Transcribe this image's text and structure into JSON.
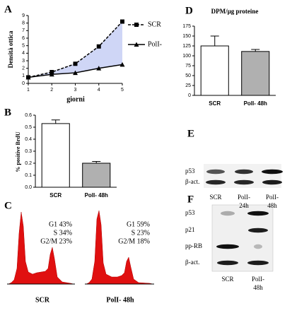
{
  "chart_data": [
    {
      "panel": "A",
      "type": "line",
      "x": [
        1,
        2,
        3,
        4,
        5
      ],
      "xlim": [
        1,
        5
      ],
      "xticks": [
        1,
        2,
        3,
        4,
        5
      ],
      "ylim": [
        0,
        9
      ],
      "yticks": [
        0,
        1,
        2,
        3,
        4,
        5,
        6,
        7,
        8,
        9
      ],
      "x_label": "giorni",
      "y_label": "Densità ottica",
      "fill_between": true,
      "fill_color": "#cfd6f6",
      "series": [
        {
          "name": "SCR",
          "color": "#000000",
          "marker": "square",
          "dashed": true,
          "values": [
            0.8,
            1.5,
            2.6,
            4.9,
            8.2
          ]
        },
        {
          "name": "PolI-",
          "color": "#000000",
          "marker": "triangle",
          "dashed": false,
          "values": [
            0.8,
            1.2,
            1.4,
            2.0,
            2.5
          ]
        }
      ]
    },
    {
      "panel": "B",
      "type": "bar",
      "categories": [
        "SCR",
        "PolI- 48h"
      ],
      "values": [
        0.53,
        0.2
      ],
      "errors": [
        0.03,
        0.015
      ],
      "colors": [
        "#ffffff",
        "#b0b0b0"
      ],
      "ylim": [
        0,
        0.6
      ],
      "yticks": [
        {
          "value": 0,
          "label": "0.0"
        },
        0.1,
        0.2,
        0.3,
        0.4,
        0.5,
        0.6
      ],
      "y_label": "% positive BrdU"
    },
    {
      "panel": "D",
      "type": "bar",
      "title": "DPM/µg proteine",
      "categories": [
        "SCR",
        "PolI- 48h"
      ],
      "values": [
        125,
        111
      ],
      "errors": [
        25,
        5
      ],
      "colors": [
        "#ffffff",
        "#b0b0b0"
      ],
      "ylim": [
        0,
        175
      ],
      "yticks": [
        0,
        25,
        50,
        75,
        100,
        125,
        150,
        175
      ]
    }
  ],
  "flow": {
    "panel": "C",
    "plots": [
      {
        "label": "SCR",
        "stats": [
          "G1 43%",
          "S 34%",
          "G2/M 23%"
        ]
      },
      {
        "label": "PolI- 48h",
        "stats": [
          "G1 59%",
          "S 23%",
          "G2/M 18%"
        ]
      }
    ]
  },
  "blot_e": {
    "panel": "E",
    "rows": [
      "p53",
      "β-act."
    ],
    "lanes": [
      [
        "SCR"
      ],
      [
        "PolI-",
        "24h"
      ],
      [
        "PolI-",
        "48h"
      ]
    ]
  },
  "blot_f": {
    "panel": "F",
    "rows": [
      "p53",
      "p21",
      "pp-RB",
      "β-act."
    ],
    "lanes": [
      [
        "SCR"
      ],
      [
        "PolI-",
        "48h"
      ]
    ]
  }
}
